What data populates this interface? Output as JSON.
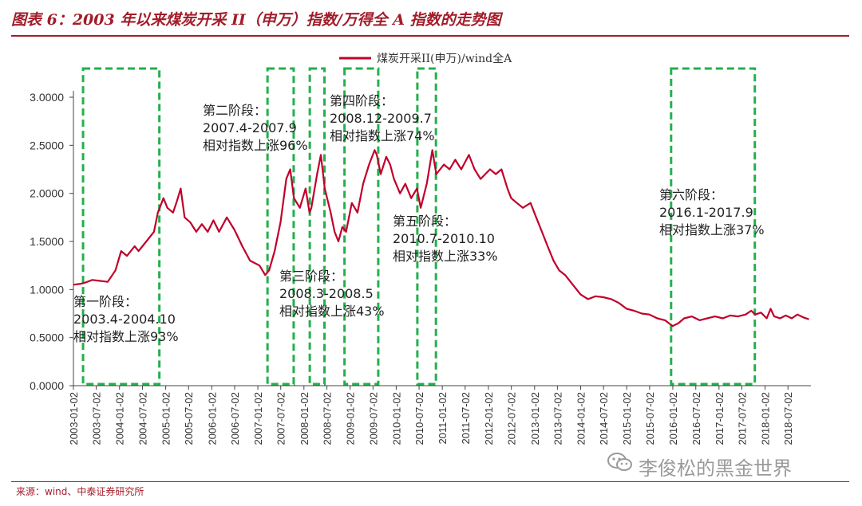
{
  "title": "图表 6：2003 年以来煤炭开采 II（申万）指数/万得全 A 指数的走势图",
  "source": "来源：wind、中泰证券研究所",
  "watermark": {
    "text": "李俊松的黑金世界",
    "icon": "wechat-icon"
  },
  "colors": {
    "title": "#a21c2a",
    "line": "#c0002a",
    "box": "#22b14c",
    "axis": "#444444"
  },
  "chart_data": {
    "type": "line",
    "title": "",
    "xlabel": "",
    "ylabel": "",
    "legend": {
      "label": "煤炭开采II(申万)/wind全A",
      "position": "top"
    },
    "grid": false,
    "ylim": [
      0,
      3
    ],
    "yticks": [
      "0.0000",
      "0.5000",
      "1.0000",
      "1.5000",
      "2.0000",
      "2.5000",
      "3.0000"
    ],
    "xlim": [
      "2003-01-02",
      "2018-12-31"
    ],
    "xticks": [
      "2003-01-02",
      "2003-07-02",
      "2004-01-02",
      "2004-07-02",
      "2005-01-02",
      "2005-07-02",
      "2006-01-02",
      "2006-07-02",
      "2007-01-02",
      "2007-07-02",
      "2008-01-02",
      "2008-07-02",
      "2009-01-02",
      "2009-07-02",
      "2010-01-02",
      "2010-07-02",
      "2011-01-02",
      "2011-07-02",
      "2012-01-02",
      "2012-07-02",
      "2013-01-02",
      "2013-07-02",
      "2014-01-02",
      "2014-07-02",
      "2015-01-02",
      "2015-07-02",
      "2016-01-02",
      "2016-07-02",
      "2017-01-02",
      "2017-07-02",
      "2018-01-02",
      "2018-07-02"
    ],
    "series": [
      {
        "name": "煤炭开采II(申万)/wind全A",
        "points": [
          [
            "2003-01-02",
            1.05
          ],
          [
            "2003-03-01",
            1.06
          ],
          [
            "2003-04-01",
            1.07
          ],
          [
            "2003-06-01",
            1.1
          ],
          [
            "2003-08-01",
            1.09
          ],
          [
            "2003-10-01",
            1.08
          ],
          [
            "2003-12-01",
            1.2
          ],
          [
            "2004-01-15",
            1.4
          ],
          [
            "2004-03-01",
            1.35
          ],
          [
            "2004-05-01",
            1.45
          ],
          [
            "2004-06-01",
            1.4
          ],
          [
            "2004-08-01",
            1.5
          ],
          [
            "2004-10-01",
            1.6
          ],
          [
            "2004-11-01",
            1.8
          ],
          [
            "2004-12-15",
            1.95
          ],
          [
            "2005-01-15",
            1.85
          ],
          [
            "2005-03-01",
            1.8
          ],
          [
            "2005-04-01",
            1.92
          ],
          [
            "2005-05-01",
            2.05
          ],
          [
            "2005-06-01",
            1.75
          ],
          [
            "2005-07-15",
            1.7
          ],
          [
            "2005-09-01",
            1.6
          ],
          [
            "2005-10-15",
            1.68
          ],
          [
            "2005-12-01",
            1.6
          ],
          [
            "2006-01-15",
            1.72
          ],
          [
            "2006-03-01",
            1.6
          ],
          [
            "2006-05-01",
            1.75
          ],
          [
            "2006-07-01",
            1.62
          ],
          [
            "2006-09-01",
            1.45
          ],
          [
            "2006-11-01",
            1.3
          ],
          [
            "2007-01-15",
            1.25
          ],
          [
            "2007-03-01",
            1.15
          ],
          [
            "2007-04-01",
            1.2
          ],
          [
            "2007-05-15",
            1.4
          ],
          [
            "2007-07-01",
            1.7
          ],
          [
            "2007-08-15",
            2.15
          ],
          [
            "2007-09-15",
            2.25
          ],
          [
            "2007-10-15",
            1.95
          ],
          [
            "2007-12-01",
            1.85
          ],
          [
            "2008-01-15",
            2.05
          ],
          [
            "2008-02-15",
            1.8
          ],
          [
            "2008-03-01",
            1.85
          ],
          [
            "2008-04-15",
            2.2
          ],
          [
            "2008-05-15",
            2.4
          ],
          [
            "2008-06-15",
            2.05
          ],
          [
            "2008-08-01",
            1.8
          ],
          [
            "2008-09-01",
            1.6
          ],
          [
            "2008-10-01",
            1.5
          ],
          [
            "2008-11-01",
            1.65
          ],
          [
            "2008-12-01",
            1.6
          ],
          [
            "2009-01-15",
            1.9
          ],
          [
            "2009-03-01",
            1.8
          ],
          [
            "2009-04-15",
            2.1
          ],
          [
            "2009-06-01",
            2.3
          ],
          [
            "2009-07-15",
            2.45
          ],
          [
            "2009-08-01",
            2.4
          ],
          [
            "2009-09-01",
            2.2
          ],
          [
            "2009-10-15",
            2.38
          ],
          [
            "2009-11-15",
            2.3
          ],
          [
            "2009-12-15",
            2.15
          ],
          [
            "2010-02-01",
            2.0
          ],
          [
            "2010-03-15",
            2.1
          ],
          [
            "2010-05-01",
            1.95
          ],
          [
            "2010-06-15",
            2.05
          ],
          [
            "2010-07-15",
            1.85
          ],
          [
            "2010-09-01",
            2.1
          ],
          [
            "2010-10-15",
            2.45
          ],
          [
            "2010-11-15",
            2.2
          ],
          [
            "2011-01-15",
            2.3
          ],
          [
            "2011-03-01",
            2.25
          ],
          [
            "2011-04-15",
            2.35
          ],
          [
            "2011-06-01",
            2.25
          ],
          [
            "2011-08-01",
            2.4
          ],
          [
            "2011-09-15",
            2.25
          ],
          [
            "2011-11-01",
            2.15
          ],
          [
            "2012-01-15",
            2.25
          ],
          [
            "2012-03-01",
            2.2
          ],
          [
            "2012-04-15",
            2.25
          ],
          [
            "2012-06-01",
            2.05
          ],
          [
            "2012-07-01",
            1.95
          ],
          [
            "2012-08-15",
            1.9
          ],
          [
            "2012-10-01",
            1.85
          ],
          [
            "2012-12-01",
            1.9
          ],
          [
            "2013-01-15",
            1.75
          ],
          [
            "2013-03-01",
            1.6
          ],
          [
            "2013-04-15",
            1.45
          ],
          [
            "2013-06-01",
            1.3
          ],
          [
            "2013-07-15",
            1.2
          ],
          [
            "2013-09-01",
            1.15
          ],
          [
            "2013-11-01",
            1.05
          ],
          [
            "2014-01-01",
            0.95
          ],
          [
            "2014-03-01",
            0.9
          ],
          [
            "2014-05-01",
            0.93
          ],
          [
            "2014-07-01",
            0.92
          ],
          [
            "2014-09-01",
            0.9
          ],
          [
            "2014-11-01",
            0.86
          ],
          [
            "2015-01-01",
            0.8
          ],
          [
            "2015-03-01",
            0.78
          ],
          [
            "2015-05-01",
            0.75
          ],
          [
            "2015-07-01",
            0.74
          ],
          [
            "2015-09-01",
            0.7
          ],
          [
            "2015-11-01",
            0.68
          ],
          [
            "2016-01-01",
            0.62
          ],
          [
            "2016-02-15",
            0.65
          ],
          [
            "2016-04-01",
            0.7
          ],
          [
            "2016-06-01",
            0.72
          ],
          [
            "2016-08-01",
            0.68
          ],
          [
            "2016-10-01",
            0.7
          ],
          [
            "2016-12-01",
            0.72
          ],
          [
            "2017-02-01",
            0.7
          ],
          [
            "2017-04-01",
            0.73
          ],
          [
            "2017-06-01",
            0.72
          ],
          [
            "2017-08-01",
            0.74
          ],
          [
            "2017-09-15",
            0.78
          ],
          [
            "2017-10-15",
            0.74
          ],
          [
            "2017-12-01",
            0.76
          ],
          [
            "2018-01-15",
            0.7
          ],
          [
            "2018-02-15",
            0.8
          ],
          [
            "2018-03-15",
            0.72
          ],
          [
            "2018-05-01",
            0.7
          ],
          [
            "2018-06-15",
            0.73
          ],
          [
            "2018-08-01",
            0.7
          ],
          [
            "2018-09-15",
            0.74
          ],
          [
            "2018-11-01",
            0.71
          ],
          [
            "2018-12-15",
            0.69
          ]
        ]
      }
    ],
    "annotations": [
      {
        "lines": [
          "第一阶段：",
          "2003.4-2004.10",
          "相对指数上涨93%"
        ],
        "box_x": [
          "2003-04-01",
          "2004-10-31"
        ]
      },
      {
        "lines": [
          "第二阶段：",
          "2007.4-2007.9",
          "相对指数上涨96%"
        ],
        "box_x": [
          "2007-04-01",
          "2007-09-30"
        ]
      },
      {
        "lines": [
          "第三阶段：",
          "2008.3-2008.5",
          "相对指数上涨43%"
        ],
        "box_x": [
          "2008-03-01",
          "2008-05-31"
        ]
      },
      {
        "lines": [
          "第四阶段：",
          "2008.12-2009.7",
          "相对指数上涨74%"
        ],
        "box_x": [
          "2008-12-01",
          "2009-07-31"
        ]
      },
      {
        "lines": [
          "第五阶段：",
          "2010.7-2010.10",
          "相对指数上涨33%"
        ],
        "box_x": [
          "2010-07-01",
          "2010-10-31"
        ]
      },
      {
        "lines": [
          "第六阶段：",
          "2016.1-2017.9",
          "相对指数上涨37%"
        ],
        "box_x": [
          "2016-01-01",
          "2017-09-30"
        ]
      }
    ]
  }
}
